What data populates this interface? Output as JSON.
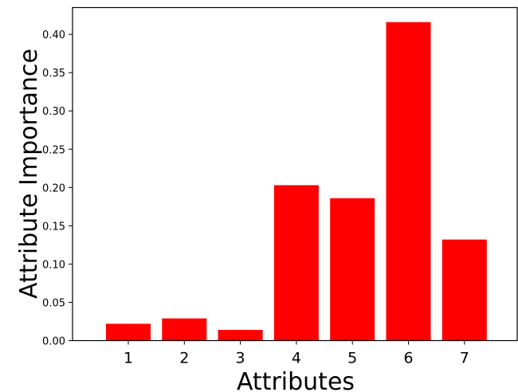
{
  "chart_data": {
    "type": "bar",
    "title": "",
    "xlabel": "Attributes",
    "ylabel": "Attribute Importance",
    "categories": [
      "1",
      "2",
      "3",
      "4",
      "5",
      "6",
      "7"
    ],
    "values": [
      0.022,
      0.029,
      0.014,
      0.203,
      0.186,
      0.416,
      0.132
    ],
    "ylim": [
      0,
      0.435
    ],
    "yticks": [
      "0.00",
      "0.05",
      "0.10",
      "0.15",
      "0.20",
      "0.25",
      "0.30",
      "0.35",
      "0.40"
    ],
    "bar_color": "#ff0000",
    "grid": false,
    "legend": "none"
  }
}
